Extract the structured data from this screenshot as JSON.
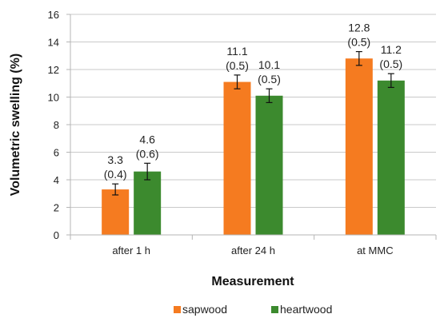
{
  "chart_data": {
    "type": "bar",
    "title": "",
    "xlabel": "Measurement",
    "ylabel": "Volumetric swelling (%)",
    "ylim": [
      0,
      16
    ],
    "yticks": [
      "0",
      "2",
      "4",
      "6",
      "8",
      "10",
      "12",
      "14",
      "16"
    ],
    "categories": [
      "after 1 h",
      "after 24 h",
      "at MMC"
    ],
    "grid": true,
    "legend_position": "bottom",
    "series": [
      {
        "name": "sapwood",
        "color": "#f57b20",
        "values": [
          3.3,
          11.1,
          12.8
        ],
        "errors": [
          0.4,
          0.5,
          0.5
        ],
        "value_labels": [
          "3.3",
          "11.1",
          "12.8"
        ],
        "error_labels": [
          "(0.4)",
          "(0.5)",
          "(0.5)"
        ]
      },
      {
        "name": "heartwood",
        "color": "#3c8a2e",
        "values": [
          4.6,
          10.1,
          11.2
        ],
        "errors": [
          0.6,
          0.5,
          0.5
        ],
        "value_labels": [
          "4.6",
          "10.1",
          "11.2"
        ],
        "error_labels": [
          "(0.6)",
          "(0.5)",
          "(0.5)"
        ]
      }
    ]
  }
}
